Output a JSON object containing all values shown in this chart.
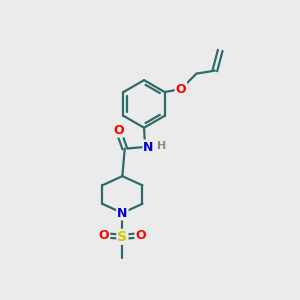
{
  "bg_color": "#ebebeb",
  "bond_color": "#2d6b6b",
  "atom_colors": {
    "O": "#ff0000",
    "N": "#0000cc",
    "S": "#cccc00",
    "C": "#2d6b6b",
    "H": "#888888"
  },
  "bond_width": 1.6,
  "font_size": 9,
  "fig_size": [
    3.0,
    3.0
  ],
  "dpi": 100
}
